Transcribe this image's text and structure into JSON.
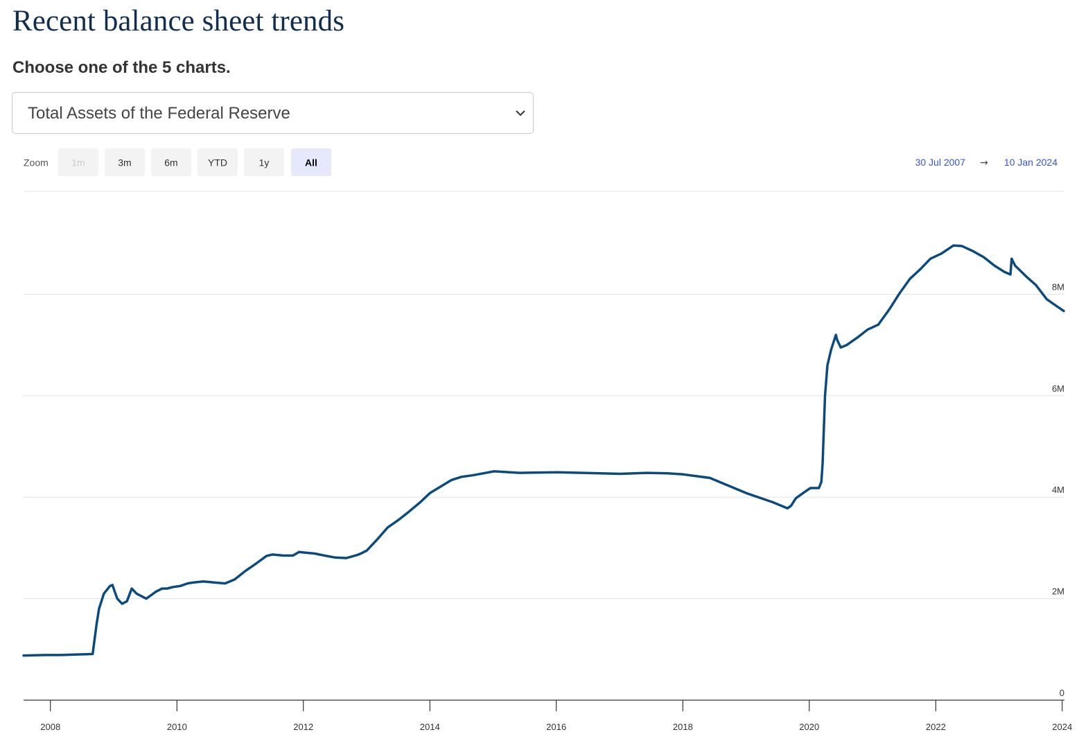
{
  "header": {
    "title": "Recent balance sheet trends",
    "subtitle": "Choose one of the 5 charts."
  },
  "chart_select": {
    "selected": "Total Assets of the Federal Reserve"
  },
  "zoom": {
    "label": "Zoom",
    "buttons": [
      {
        "label": "1m",
        "state": "disabled"
      },
      {
        "label": "3m",
        "state": "normal"
      },
      {
        "label": "6m",
        "state": "normal"
      },
      {
        "label": "YTD",
        "state": "normal"
      },
      {
        "label": "1y",
        "state": "normal"
      },
      {
        "label": "All",
        "state": "active"
      }
    ]
  },
  "range": {
    "from": "30 Jul 2007",
    "arrow": "→",
    "to": "10 Jan 2024"
  },
  "colors": {
    "line": "#0b4a7e",
    "title": "#112e51",
    "range_link": "#3355dd",
    "grid": "#e0e0e0"
  },
  "chart_data": {
    "type": "line",
    "title": "",
    "xlabel": "",
    "ylabel": "",
    "x_range": [
      "2007-07-30",
      "2024-01-10"
    ],
    "y_range": [
      0,
      10000000
    ],
    "y_ticks": [
      {
        "value": 0,
        "label": "0"
      },
      {
        "value": 2000000,
        "label": "2M"
      },
      {
        "value": 4000000,
        "label": "4M"
      },
      {
        "value": 6000000,
        "label": "6M"
      },
      {
        "value": 8000000,
        "label": "8M"
      }
    ],
    "x_ticks": [
      "2008",
      "2010",
      "2012",
      "2014",
      "2016",
      "2018",
      "2020",
      "2022",
      "2024"
    ],
    "grid": true,
    "legend": "none",
    "series": [
      {
        "x": [
          "2007-07-30",
          "2007-12-01",
          "2008-03-01",
          "2008-06-01",
          "2008-09-01",
          "2008-09-24",
          "2008-10-08",
          "2008-11-05",
          "2008-12-10",
          "2008-12-24",
          "2009-01-21",
          "2009-02-18",
          "2009-03-18",
          "2009-04-15",
          "2009-05-13",
          "2009-06-10",
          "2009-07-08",
          "2009-08-05",
          "2009-09-02",
          "2009-10-07",
          "2009-11-04",
          "2009-12-09",
          "2010-01-20",
          "2010-03-03",
          "2010-04-07",
          "2010-06-02",
          "2010-08-04",
          "2010-10-06",
          "2010-12-01",
          "2011-02-02",
          "2011-04-06",
          "2011-06-01",
          "2011-07-06",
          "2011-09-07",
          "2011-11-02",
          "2011-12-07",
          "2012-01-04",
          "2012-03-07",
          "2012-05-02",
          "2012-07-04",
          "2012-09-05",
          "2012-11-07",
          "2012-12-05",
          "2013-01-02",
          "2013-03-06",
          "2013-05-01",
          "2013-07-03",
          "2013-09-04",
          "2013-11-06",
          "2014-01-01",
          "2014-03-05",
          "2014-05-07",
          "2014-07-02",
          "2014-09-03",
          "2014-11-05",
          "2015-01-07",
          "2015-06-03",
          "2016-01-06",
          "2016-06-01",
          "2017-01-04",
          "2017-06-07",
          "2017-10-04",
          "2018-01-03",
          "2018-06-06",
          "2019-01-02",
          "2019-06-05",
          "2019-08-28",
          "2019-09-18",
          "2019-10-16",
          "2019-12-04",
          "2020-01-08",
          "2020-02-26",
          "2020-03-11",
          "2020-03-18",
          "2020-03-25",
          "2020-04-01",
          "2020-04-15",
          "2020-05-06",
          "2020-06-03",
          "2020-06-10",
          "2020-07-01",
          "2020-08-05",
          "2020-10-07",
          "2020-12-02",
          "2021-02-03",
          "2021-04-07",
          "2021-06-02",
          "2021-08-04",
          "2021-10-06",
          "2021-12-01",
          "2022-02-02",
          "2022-04-13",
          "2022-06-01",
          "2022-08-03",
          "2022-10-05",
          "2022-12-07",
          "2023-02-01",
          "2023-03-08",
          "2023-03-15",
          "2023-03-22",
          "2023-04-05",
          "2023-06-07",
          "2023-08-02",
          "2023-10-04",
          "2023-12-06",
          "2024-01-10"
        ],
        "values": [
          880000,
          890000,
          890000,
          900000,
          910000,
          1500000,
          1800000,
          2100000,
          2250000,
          2270000,
          2000000,
          1900000,
          1950000,
          2200000,
          2100000,
          2050000,
          2000000,
          2070000,
          2140000,
          2200000,
          2200000,
          2230000,
          2250000,
          2300000,
          2320000,
          2340000,
          2320000,
          2300000,
          2380000,
          2550000,
          2700000,
          2840000,
          2870000,
          2850000,
          2850000,
          2920000,
          2910000,
          2890000,
          2850000,
          2810000,
          2800000,
          2860000,
          2900000,
          2950000,
          3180000,
          3400000,
          3550000,
          3720000,
          3900000,
          4080000,
          4210000,
          4340000,
          4400000,
          4430000,
          4470000,
          4510000,
          4480000,
          4490000,
          4480000,
          4460000,
          4480000,
          4470000,
          4450000,
          4380000,
          4080000,
          3900000,
          3780000,
          3830000,
          3980000,
          4100000,
          4180000,
          4180000,
          4300000,
          4650000,
          5300000,
          6000000,
          6600000,
          6900000,
          7200000,
          7100000,
          6950000,
          7000000,
          7150000,
          7300000,
          7400000,
          7700000,
          8000000,
          8300000,
          8500000,
          8700000,
          8800000,
          8960000,
          8950000,
          8850000,
          8730000,
          8560000,
          8440000,
          8390000,
          8700000,
          8650000,
          8560000,
          8350000,
          8180000,
          7900000,
          7750000,
          7670000
        ]
      }
    ]
  }
}
